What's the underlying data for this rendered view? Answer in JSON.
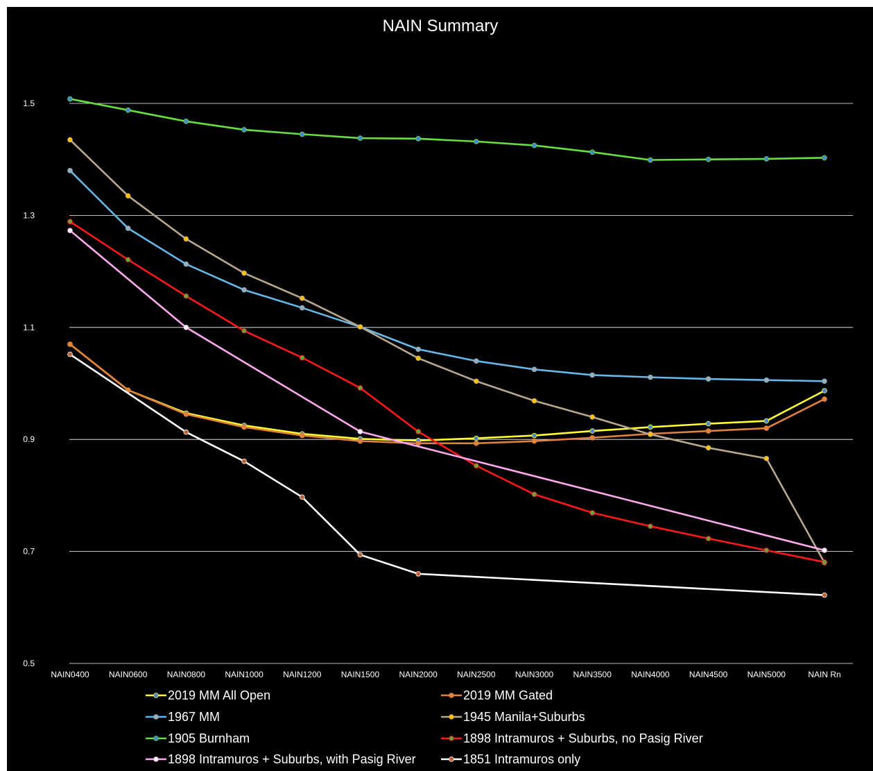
{
  "chart_data": {
    "type": "line",
    "title": "NAIN Summary",
    "xlabel": "",
    "ylabel": "",
    "categories": [
      "NAIN0400",
      "NAIN0600",
      "NAIN0800",
      "NAIN1000",
      "NAIN1200",
      "NAIN1500",
      "NAIN2000",
      "NAIN2500",
      "NAIN3000",
      "NAIN3500",
      "NAIN4000",
      "NAIN4500",
      "NAIN5000",
      "NAIN Rn"
    ],
    "ylim": [
      0.5,
      1.6
    ],
    "yticks": [
      0.5,
      0.7,
      0.9,
      1.1,
      1.3,
      1.5
    ],
    "ytick_labels": [
      "0.5",
      "0.7",
      "0.9",
      "1.1",
      "1.3",
      "1.5"
    ],
    "grid": true,
    "legend_position": "bottom",
    "background": "#000000",
    "series": [
      {
        "name": "2019 MM All Open",
        "color": "#ffff33",
        "marker": "#4a86d0",
        "values": [
          1.07,
          0.988,
          0.947,
          0.925,
          0.91,
          0.901,
          0.898,
          0.902,
          0.907,
          0.915,
          0.922,
          0.928,
          0.933,
          0.987
        ]
      },
      {
        "name": "2019 MM Gated",
        "color": "#e0823e",
        "marker": "#e0823e",
        "values": [
          1.07,
          0.988,
          0.945,
          0.922,
          0.907,
          0.897,
          0.893,
          0.893,
          0.897,
          0.903,
          0.91,
          0.915,
          0.92,
          0.972
        ]
      },
      {
        "name": "1967 MM",
        "color": "#66b8e8",
        "marker": "#a8a8a8",
        "values": [
          1.38,
          1.277,
          1.213,
          1.167,
          1.135,
          1.101,
          1.061,
          1.04,
          1.025,
          1.015,
          1.011,
          1.008,
          1.006,
          1.004
        ]
      },
      {
        "name": "1945 Manila+Suburbs",
        "color": "#b8a890",
        "marker": "#ffc000",
        "values": [
          1.435,
          1.335,
          1.258,
          1.197,
          1.152,
          1.101,
          1.045,
          1.004,
          0.969,
          0.94,
          0.909,
          0.885,
          0.866,
          0.68
        ]
      },
      {
        "name": "1905 Burnham",
        "color": "#66e040",
        "marker": "#4a86d0",
        "values": [
          1.508,
          1.488,
          1.468,
          1.453,
          1.445,
          1.438,
          1.437,
          1.432,
          1.425,
          1.413,
          1.399,
          1.4,
          1.401,
          1.403
        ]
      },
      {
        "name": "1898 Intramuros + Suburbs, no Pasig River",
        "color": "#ff1a1a",
        "marker": "#6ca040",
        "values": [
          1.289,
          1.221,
          1.156,
          1.094,
          1.046,
          0.992,
          0.914,
          0.853,
          0.802,
          0.769,
          0.745,
          0.723,
          0.702,
          0.681
        ]
      },
      {
        "name": "1898 Intramuros + Suburbs, with Pasig River",
        "color": "#ffaaee",
        "marker": "#ffffff",
        "values": [
          1.273,
          null,
          1.1,
          null,
          null,
          0.914,
          null,
          null,
          null,
          null,
          null,
          null,
          null,
          0.702
        ]
      },
      {
        "name": "1851 Intramuros only",
        "color": "#ffffff",
        "marker": "#c06030",
        "values": [
          1.052,
          null,
          0.913,
          0.861,
          0.797,
          0.694,
          0.66,
          null,
          null,
          null,
          null,
          null,
          null,
          0.622
        ]
      }
    ]
  }
}
